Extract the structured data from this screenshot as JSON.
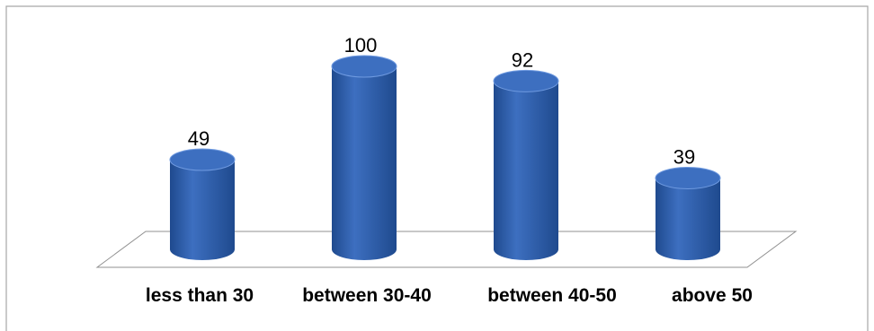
{
  "chart_data": {
    "type": "bar",
    "style": "3d-cylinder",
    "categories": [
      "less than 30",
      "between 30-40",
      "between 40-50",
      "above 50"
    ],
    "values": [
      49,
      100,
      92,
      39
    ],
    "data_labels": [
      "49",
      "100",
      "92",
      "39"
    ],
    "ylim": [
      0,
      100
    ],
    "grid": false,
    "legend": "none",
    "colors": {
      "bar_main": "#3d6fc0",
      "bar_dark": "#1f4a8e",
      "bar_light": "#6f9ae0",
      "floor_stroke": "#909090",
      "frame_stroke": "#a6a6a6"
    }
  }
}
